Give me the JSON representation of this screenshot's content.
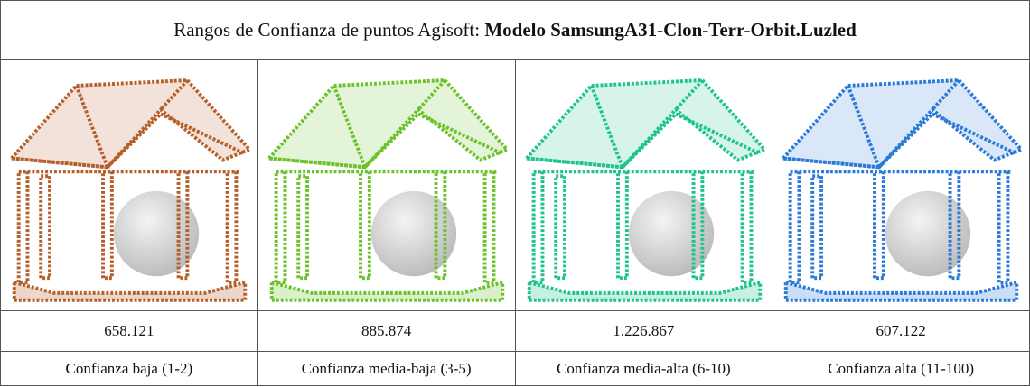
{
  "header": {
    "title_prefix": "Rangos de Confianza de puntos Agisoft: ",
    "title_model": "Modelo SamsungA31-Clon-Terr-Orbit.Luzled"
  },
  "table": {
    "rows": [
      [
        "658.121",
        "885.874",
        "1.226.867",
        "607.122"
      ],
      [
        "Confianza baja (1-2)",
        "Confianza media-baja (3-5)",
        "Confianza media-alta (6-10)",
        "Confianza alta (11-100)"
      ]
    ]
  }
}
